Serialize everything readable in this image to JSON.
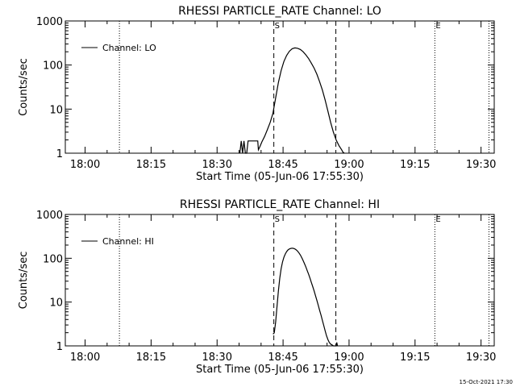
{
  "chart_data": [
    {
      "type": "line",
      "title": "RHESSI PARTICLE_RATE Channel: LO",
      "xlabel": "Start Time (05-Jun-06 17:55:30)",
      "ylabel": "Counts/sec",
      "yscale": "log",
      "ylim": [
        1,
        1000
      ],
      "xlim": [
        17.925,
        19.55
      ],
      "y_ticks": [
        {
          "v": 1,
          "label": "1"
        },
        {
          "v": 10,
          "label": "10"
        },
        {
          "v": 100,
          "label": "100"
        },
        {
          "v": 1000,
          "label": "1000"
        }
      ],
      "x_ticks": [
        {
          "v": 18.0,
          "label": "18:00"
        },
        {
          "v": 18.25,
          "label": "18:15"
        },
        {
          "v": 18.5,
          "label": "18:30"
        },
        {
          "v": 18.75,
          "label": "18:45"
        },
        {
          "v": 19.0,
          "label": "19:00"
        },
        {
          "v": 19.25,
          "label": "19:15"
        },
        {
          "v": 19.5,
          "label": "19:30"
        }
      ],
      "legend": "Channel: LO",
      "legend_position": "top-left",
      "markers": [
        {
          "x": 18.13,
          "style": "dotted",
          "label": ""
        },
        {
          "x": 18.715,
          "style": "dashed",
          "label": "S"
        },
        {
          "x": 18.95,
          "style": "dashed",
          "label": ""
        },
        {
          "x": 19.325,
          "style": "dotted",
          "label": "E"
        },
        {
          "x": 19.53,
          "style": "dotted",
          "label": ""
        }
      ],
      "series": [
        {
          "name": "Channel: LO",
          "x": [
            18.5863,
            18.5915,
            18.5968,
            18.602,
            18.6072,
            18.6124,
            18.6176,
            18.6228,
            18.628,
            18.6541,
            18.6567,
            18.662,
            18.6698,
            18.6802,
            18.6906,
            18.701,
            18.7115,
            18.7219,
            18.7323,
            18.7427,
            18.7531,
            18.7635,
            18.774,
            18.7844,
            18.7948,
            18.8052,
            18.8156,
            18.826,
            18.8365,
            18.8469,
            18.8573,
            18.8677,
            18.8781,
            18.8885,
            18.899,
            18.9094,
            18.9198,
            18.9302,
            18.9406,
            18.951,
            18.9615,
            18.9719,
            18.9771,
            18.9823
          ],
          "y": [
            1,
            1.9,
            1,
            1.9,
            1,
            1,
            1.9,
            1.9,
            1.9,
            1.9,
            1.2,
            1.4,
            1.8,
            2.4,
            3.4,
            5,
            8,
            18,
            40,
            75,
            120,
            165,
            205,
            235,
            245,
            240,
            225,
            200,
            170,
            140,
            110,
            85,
            62,
            42,
            27,
            16,
            9,
            5,
            3,
            2,
            1.5,
            1.2,
            1.05,
            1
          ]
        }
      ]
    },
    {
      "type": "line",
      "title": "RHESSI PARTICLE_RATE Channel: HI",
      "xlabel": "Start Time (05-Jun-06 17:55:30)",
      "ylabel": "Counts/sec",
      "yscale": "log",
      "ylim": [
        1,
        1000
      ],
      "xlim": [
        17.925,
        19.55
      ],
      "y_ticks": [
        {
          "v": 1,
          "label": "1"
        },
        {
          "v": 10,
          "label": "10"
        },
        {
          "v": 100,
          "label": "100"
        },
        {
          "v": 1000,
          "label": "1000"
        }
      ],
      "x_ticks": [
        {
          "v": 18.0,
          "label": "18:00"
        },
        {
          "v": 18.25,
          "label": "18:15"
        },
        {
          "v": 18.5,
          "label": "18:30"
        },
        {
          "v": 18.75,
          "label": "18:45"
        },
        {
          "v": 19.0,
          "label": "19:00"
        },
        {
          "v": 19.25,
          "label": "19:15"
        },
        {
          "v": 19.5,
          "label": "19:30"
        }
      ],
      "legend": "Channel: HI",
      "legend_position": "top-left",
      "markers": [
        {
          "x": 18.13,
          "style": "dotted",
          "label": ""
        },
        {
          "x": 18.715,
          "style": "dashed",
          "label": "S"
        },
        {
          "x": 18.95,
          "style": "dashed",
          "label": ""
        },
        {
          "x": 19.325,
          "style": "dotted",
          "label": "E"
        },
        {
          "x": 19.53,
          "style": "dotted",
          "label": ""
        }
      ],
      "series": [
        {
          "name": "Channel: HI",
          "x": [
            18.7115,
            18.7141,
            18.7167,
            18.7219,
            18.7271,
            18.7323,
            18.7375,
            18.7427,
            18.7479,
            18.7531,
            18.7583,
            18.7635,
            18.7688,
            18.774,
            18.7792,
            18.7844,
            18.7896,
            18.7948,
            18.8,
            18.8052,
            18.8104,
            18.8156,
            18.8208,
            18.826,
            18.8313,
            18.8365,
            18.8417,
            18.8469,
            18.8521,
            18.8573,
            18.8625,
            18.8677,
            18.8729,
            18.8781,
            18.8833,
            18.8885,
            18.8938,
            18.899,
            18.9042,
            18.9094,
            18.9146,
            18.9198,
            18.925,
            18.9302,
            18.9354,
            18.9406,
            18.9458,
            18.951,
            18.9536,
            18.9563
          ],
          "y": [
            1.9,
            1.9,
            2,
            3.5,
            8,
            18,
            35,
            58,
            82,
            105,
            125,
            142,
            155,
            163,
            168,
            170,
            168,
            163,
            155,
            145,
            132,
            118,
            103,
            88,
            75,
            63,
            52,
            43,
            35,
            28,
            22.5,
            18,
            14,
            11,
            8.5,
            6.5,
            5,
            3.8,
            2.9,
            2.2,
            1.7,
            1.4,
            1.2,
            1.1,
            1.05,
            1,
            1,
            1,
            1.2,
            1
          ]
        }
      ]
    }
  ],
  "footer": {
    "timestamp": "15-Oct-2021 17:30"
  }
}
